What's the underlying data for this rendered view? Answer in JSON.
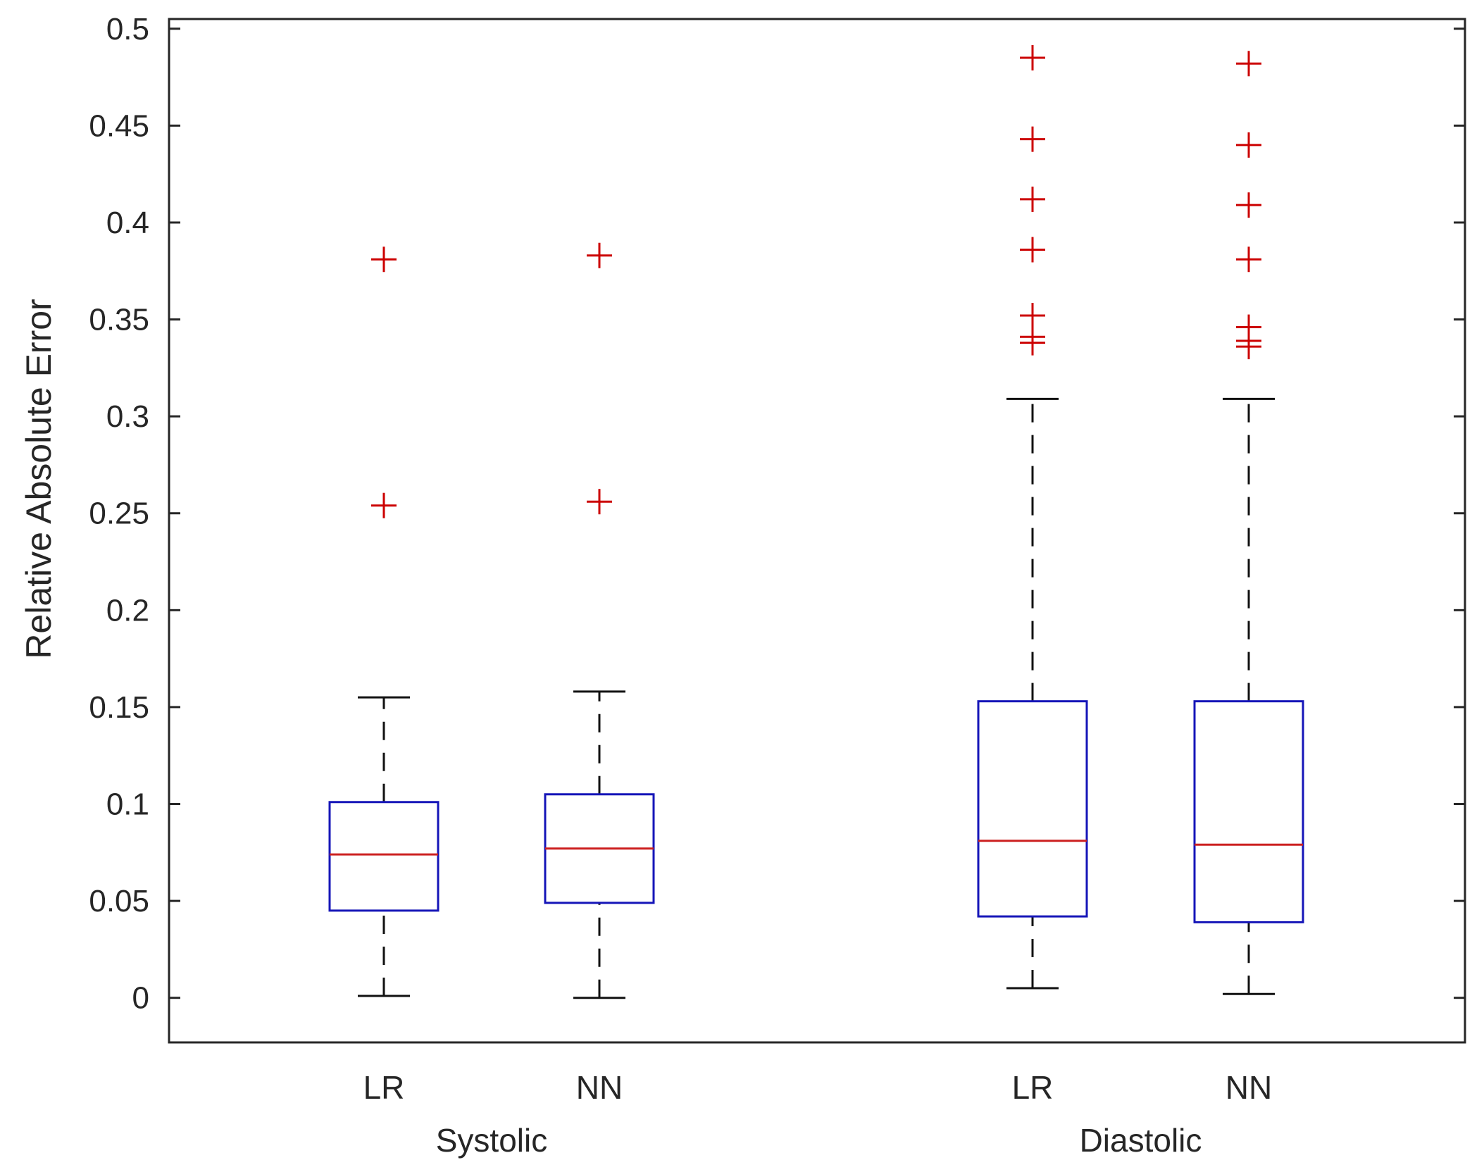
{
  "chart_data": {
    "type": "boxplot",
    "ylabel": "Relative Absolute Error",
    "ylim": [
      -0.023,
      0.505
    ],
    "yticks": [
      {
        "value": 0,
        "label": "0"
      },
      {
        "value": 0.05,
        "label": "0.05"
      },
      {
        "value": 0.1,
        "label": "0.1"
      },
      {
        "value": 0.15,
        "label": "0.15"
      },
      {
        "value": 0.2,
        "label": "0.2"
      },
      {
        "value": 0.25,
        "label": "0.25"
      },
      {
        "value": 0.3,
        "label": "0.3"
      },
      {
        "value": 0.35,
        "label": "0.35"
      },
      {
        "value": 0.4,
        "label": "0.4"
      },
      {
        "value": 0.45,
        "label": "0.45"
      },
      {
        "value": 0.5,
        "label": "0.5"
      }
    ],
    "groups": [
      "Systolic",
      "Diastolic"
    ],
    "boxes": [
      {
        "group": "Systolic",
        "label": "LR",
        "whisker_low": 0.001,
        "q1": 0.045,
        "median": 0.074,
        "q3": 0.101,
        "whisker_high": 0.155,
        "outliers": [
          0.254,
          0.381
        ]
      },
      {
        "group": "Systolic",
        "label": "NN",
        "whisker_low": 0.0,
        "q1": 0.049,
        "median": 0.077,
        "q3": 0.105,
        "whisker_high": 0.158,
        "outliers": [
          0.256,
          0.383
        ]
      },
      {
        "group": "Diastolic",
        "label": "LR",
        "whisker_low": 0.005,
        "q1": 0.042,
        "median": 0.081,
        "q3": 0.153,
        "whisker_high": 0.309,
        "outliers": [
          0.338,
          0.341,
          0.352,
          0.386,
          0.412,
          0.443,
          0.485
        ]
      },
      {
        "group": "Diastolic",
        "label": "NN",
        "whisker_low": 0.002,
        "q1": 0.039,
        "median": 0.079,
        "q3": 0.153,
        "whisker_high": 0.309,
        "outliers": [
          0.336,
          0.339,
          0.346,
          0.381,
          0.409,
          0.44,
          0.482
        ]
      }
    ],
    "colors": {
      "box": "#1515b8",
      "median": "#cc2020",
      "whisker": "#111111",
      "outlier": "#cc0000",
      "axis": "#262626"
    }
  }
}
